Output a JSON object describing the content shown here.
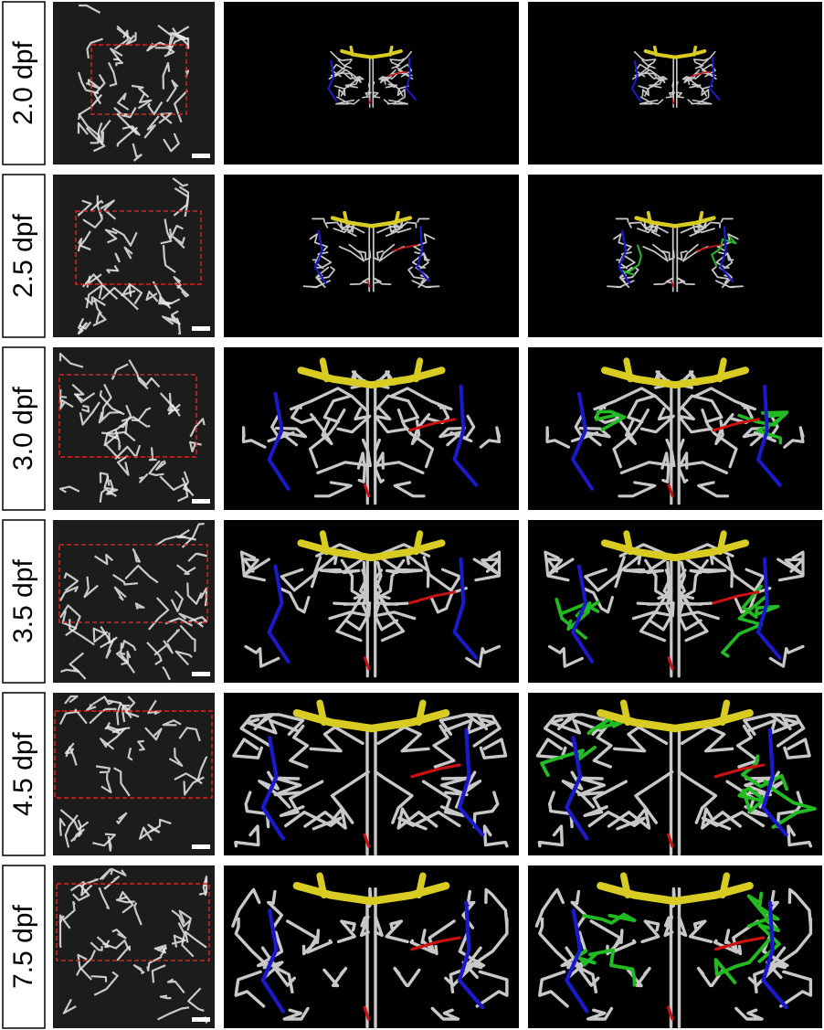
{
  "rows": [
    {
      "label": "2.0 dpf"
    },
    {
      "label": "2.5 dpf"
    },
    {
      "label": "3.0 dpf"
    },
    {
      "label": "3.5 dpf"
    },
    {
      "label": "4.5 dpf"
    },
    {
      "label": "7.5 dpf"
    }
  ]
}
